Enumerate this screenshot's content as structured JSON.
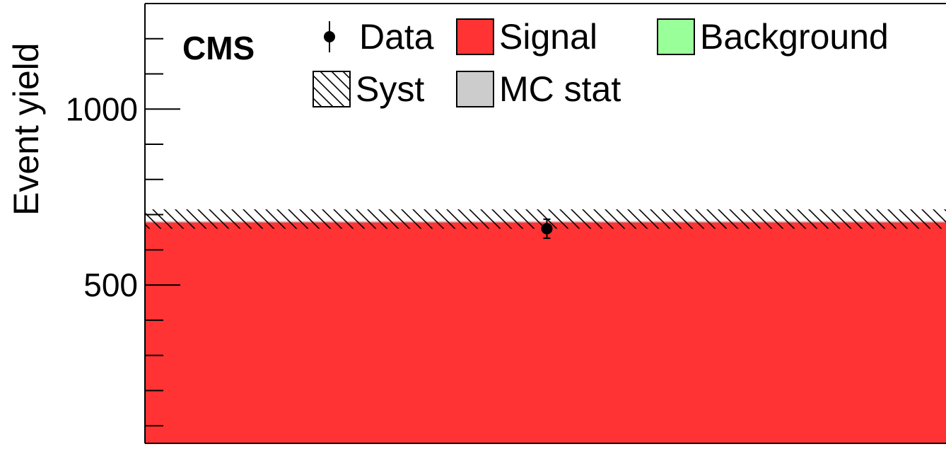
{
  "chart_data": {
    "type": "bar",
    "title": "",
    "experiment_label": "CMS",
    "ylabel": "Event yield",
    "xlabel": "",
    "ylim": [
      50,
      1300
    ],
    "yticks": [
      500,
      1000
    ],
    "grid": false,
    "legend_position": "top",
    "series": [
      {
        "name": "Background",
        "kind": "stack",
        "value": 50,
        "color": "#99ff99"
      },
      {
        "name": "Signal",
        "kind": "stack",
        "value": 630,
        "color": "#ff3333"
      },
      {
        "name": "Syst",
        "kind": "band",
        "low": 660,
        "high": 715,
        "pattern": "hatch"
      },
      {
        "name": "MC stat",
        "kind": "band",
        "low": 678,
        "high": 682,
        "color": "#cccccc"
      },
      {
        "name": "Data",
        "kind": "points",
        "x": 0.5,
        "y": 660,
        "yerr": 27,
        "color": "#000000"
      }
    ]
  }
}
